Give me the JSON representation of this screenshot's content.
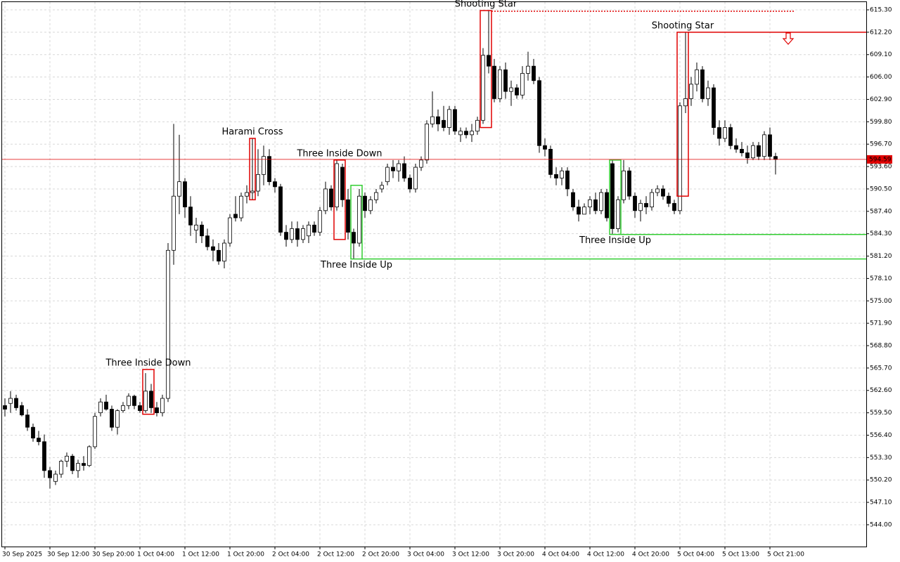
{
  "chart_data": {
    "type": "candlestick",
    "categories": [
      "30 Sep 2025",
      null,
      null,
      null,
      null,
      null,
      null,
      null,
      "30 Sep 12:00",
      null,
      null,
      null,
      null,
      null,
      null,
      null,
      "30 Sep 20:00",
      null,
      null,
      null,
      null,
      null,
      null,
      null,
      "1 Oct 04:00",
      null,
      null,
      null,
      null,
      null,
      null,
      null,
      "1 Oct 12:00",
      null,
      null,
      null,
      null,
      null,
      null,
      null,
      "1 Oct 20:00",
      null,
      null,
      null,
      null,
      null,
      null,
      null,
      "2 Oct 04:00",
      null,
      null,
      null,
      null,
      null,
      null,
      null,
      "2 Oct 12:00",
      null,
      null,
      null,
      null,
      null,
      null,
      null,
      "2 Oct 20:00",
      null,
      null,
      null,
      null,
      null,
      null,
      null,
      "3 Oct 04:00",
      null,
      null,
      null,
      null,
      null,
      null,
      null,
      "3 Oct 12:00",
      null,
      null,
      null,
      null,
      null,
      null,
      null,
      "3 Oct 20:00",
      null,
      null,
      null,
      null,
      null,
      null,
      null,
      "4 Oct 04:00",
      null,
      null,
      null,
      null,
      null,
      null,
      null,
      "4 Oct 12:00",
      null,
      null,
      null,
      null,
      null,
      null,
      null,
      "4 Oct 20:00",
      null,
      null,
      null,
      null,
      null,
      null,
      null,
      "5 Oct 04:00",
      null,
      null,
      null,
      null,
      null,
      null,
      null,
      "5 Oct 13:00",
      null,
      null,
      null,
      null,
      null,
      null,
      null,
      "5 Oct 21:00",
      null
    ],
    "open": [
      560.5,
      560.8,
      561.5,
      560.5,
      559.2,
      557.5,
      556,
      555.5,
      551.5,
      550,
      551,
      552.8,
      553.5,
      551.5,
      552.5,
      552.2,
      554.8,
      559.5,
      561,
      560,
      557.5,
      559.8,
      560.5,
      561.8,
      560.5,
      559.8,
      562.5,
      560.2,
      559.5,
      561.5,
      582,
      589.5,
      591.5,
      588,
      584.8,
      585.5,
      584,
      582.5,
      582,
      580.5,
      583,
      587,
      586.5,
      589.5,
      590,
      590.2,
      592.5,
      595,
      591.5,
      590.8,
      584.5,
      583.5,
      585,
      583.5,
      584,
      585.5,
      584.5,
      587.5,
      590.5,
      588,
      593.5,
      589,
      584.5,
      583,
      589.5,
      587.5,
      589,
      590.5,
      591.5,
      593.5,
      593,
      594,
      592,
      590.5,
      593.5,
      594.5,
      599.5,
      600.5,
      600,
      599,
      601.5,
      598,
      598.5,
      598,
      598.5,
      600,
      609,
      607.5,
      603,
      607,
      604,
      604.5,
      603.5,
      606.5,
      607.5,
      605.5,
      596.5,
      596,
      592.5,
      592,
      593,
      590,
      588,
      587,
      588,
      589,
      587.5,
      590,
      594,
      585,
      589,
      593,
      589.5,
      587.5,
      588.5,
      588,
      590,
      590.5,
      589.5,
      588.5,
      587.5,
      602,
      603,
      605,
      607,
      603,
      604.5,
      599,
      597.5,
      599,
      596.5,
      596,
      595.5,
      594.8,
      596.5,
      595,
      598,
      595
    ],
    "high": [
      561.5,
      562.5,
      562,
      561,
      560,
      558,
      557,
      556.5,
      552,
      551.5,
      553,
      554,
      553.8,
      553,
      553.5,
      555,
      559.5,
      561.5,
      562,
      560.5,
      560,
      561,
      562.2,
      562,
      561,
      565,
      563.5,
      561,
      562,
      583,
      599.5,
      598,
      592,
      589.5,
      586.5,
      586,
      585,
      583.5,
      583,
      583.5,
      587,
      589.5,
      590,
      591,
      597.5,
      596,
      596.5,
      596,
      592,
      591.2,
      585.5,
      586,
      586,
      585.5,
      586,
      586,
      588,
      591.5,
      591,
      594.5,
      594,
      590.5,
      585,
      590.5,
      590,
      589.5,
      590.5,
      591.5,
      594,
      594.5,
      594.5,
      595,
      592.5,
      594,
      595,
      600,
      604,
      601.5,
      602,
      602,
      602,
      599,
      599,
      599.5,
      600.5,
      610,
      615.2,
      608.5,
      607.5,
      608,
      605.5,
      605,
      607.5,
      609.5,
      608.5,
      606,
      597.5,
      596.5,
      593.5,
      593.5,
      593.5,
      590.5,
      589,
      588.5,
      589.5,
      590,
      590.5,
      590.5,
      594.5,
      589.5,
      594.5,
      593.5,
      590,
      589,
      589.5,
      590.5,
      591,
      591,
      590,
      589,
      602.5,
      612.2,
      606,
      608,
      607.5,
      605.5,
      605,
      600,
      600,
      599.5,
      597.5,
      597,
      596.5,
      597,
      597,
      598.5,
      599,
      595.5
    ],
    "low": [
      559,
      559.5,
      559.8,
      559,
      557,
      555.5,
      555,
      550.5,
      549,
      549.5,
      550.5,
      552,
      551,
      550.5,
      551.5,
      552,
      554.5,
      559,
      559.8,
      557,
      556.5,
      559.5,
      560,
      560,
      559.5,
      559.5,
      559.5,
      559,
      559,
      561,
      580,
      587,
      586.5,
      584,
      583,
      583,
      582,
      580.5,
      580,
      579.5,
      582.5,
      586,
      586,
      588.5,
      589,
      589.5,
      591,
      591,
      590,
      584,
      582.5,
      583,
      582.5,
      583,
      583,
      584,
      584,
      587,
      587.5,
      587.5,
      588,
      583.5,
      580.8,
      582.5,
      586.5,
      587,
      588.5,
      590,
      591,
      592,
      591.5,
      591.5,
      590,
      590,
      593,
      594,
      599,
      598.5,
      598.5,
      598,
      598,
      597,
      597.5,
      597,
      598,
      599.5,
      606.5,
      602.5,
      602.5,
      603,
      602,
      603,
      603,
      605.5,
      605,
      595.5,
      595,
      592,
      591,
      591,
      589.5,
      587.5,
      586,
      587,
      587,
      587,
      587,
      586,
      584.2,
      584.5,
      588.5,
      589,
      586.5,
      586,
      587,
      587.5,
      589.5,
      589,
      588,
      587,
      587,
      601,
      602,
      604,
      602.5,
      602,
      598,
      596.5,
      597,
      596,
      595.5,
      595,
      594,
      594.5,
      594.5,
      594.5,
      594.5,
      592.5
    ],
    "close": [
      560,
      561.5,
      560.2,
      559.2,
      557.5,
      556,
      555.5,
      551.5,
      550.5,
      551,
      552.8,
      553.5,
      551.5,
      552.5,
      552.2,
      554.8,
      559,
      561,
      560,
      557.5,
      559.8,
      560.5,
      561.8,
      560.5,
      559.8,
      562.5,
      560.2,
      559.5,
      561.5,
      582,
      589.5,
      591.5,
      588,
      585.5,
      585.5,
      584,
      582.5,
      582,
      580.5,
      583,
      586.5,
      586.5,
      589.5,
      590,
      590.2,
      592.5,
      595,
      591.5,
      590.8,
      584.5,
      583.5,
      585,
      583.5,
      585,
      585.5,
      584.5,
      587.5,
      590.5,
      588,
      594,
      589,
      584.5,
      583,
      589.5,
      587.5,
      589,
      590,
      591,
      593.5,
      593,
      594,
      592,
      590.5,
      593.5,
      594.5,
      599.5,
      600.5,
      599.5,
      599,
      601.5,
      598.5,
      598.5,
      598,
      598.5,
      600,
      609,
      607.5,
      603,
      607,
      604,
      604.5,
      603.5,
      606.5,
      607.5,
      605.5,
      596.5,
      596,
      592.5,
      592,
      593,
      590.5,
      588,
      587,
      588,
      589,
      587.5,
      590,
      586.5,
      585,
      589,
      593,
      589.5,
      587.5,
      588.5,
      588,
      590,
      590.5,
      589.5,
      588.5,
      587.5,
      602,
      603,
      605,
      607,
      603,
      604.5,
      599,
      597.5,
      599,
      596.5,
      596,
      595.5,
      594.8,
      596.5,
      595,
      598,
      595,
      594.59
    ],
    "bull_color": "#ffffff",
    "bear_color": "#000000",
    "outline_color": "#000000",
    "current_price": 594.59,
    "current_price_color": "#e00000",
    "ylim": [
      540.98,
      616.37
    ],
    "yticks": [
      {
        "value": 615.3,
        "label": "615.30"
      },
      {
        "value": 612.2,
        "label": "612.20"
      },
      {
        "value": 609.1,
        "label": "609.10"
      },
      {
        "value": 606,
        "label": "606.00"
      },
      {
        "value": 602.9,
        "label": "602.90"
      },
      {
        "value": 599.8,
        "label": "599.80"
      },
      {
        "value": 596.7,
        "label": "596.70"
      },
      {
        "value": 593.6,
        "label": "593.60"
      },
      {
        "value": 590.5,
        "label": "590.50"
      },
      {
        "value": 587.4,
        "label": "587.40"
      },
      {
        "value": 584.3,
        "label": "584.30"
      },
      {
        "value": 581.2,
        "label": "581.20"
      },
      {
        "value": 578.1,
        "label": "578.10"
      },
      {
        "value": 575,
        "label": "575.00"
      },
      {
        "value": 571.9,
        "label": "571.90"
      },
      {
        "value": 568.8,
        "label": "568.80"
      },
      {
        "value": 565.7,
        "label": "565.70"
      },
      {
        "value": 562.6,
        "label": "562.60"
      },
      {
        "value": 559.5,
        "label": "559.50"
      },
      {
        "value": 556.4,
        "label": "556.40"
      },
      {
        "value": 553.3,
        "label": "553.30"
      },
      {
        "value": 550.2,
        "label": "550.20"
      },
      {
        "value": 547.1,
        "label": "547.10"
      },
      {
        "value": 544,
        "label": "544.00"
      }
    ],
    "grid": true,
    "patterns": [
      {
        "label": "Three Inside Down",
        "color": "#e00000",
        "candles": [
          25,
          26
        ],
        "high": 565.5,
        "low": 559.3
      },
      {
        "label": "Harami Cross",
        "color": "#e00000",
        "candles": [
          44,
          44
        ],
        "high": 597.5,
        "low": 589
      },
      {
        "label": "Three Inside Down",
        "color": "#e00000",
        "candles": [
          59,
          60
        ],
        "high": 594.5,
        "low": 583.5
      },
      {
        "label": "Three Inside Up",
        "color": "#32cd32",
        "candles": [
          62,
          63
        ],
        "high": 591,
        "low": 580.8,
        "level": 580.8,
        "level_style": "solid"
      },
      {
        "label": "Shooting Star",
        "color": "#e00000",
        "candles": [
          85,
          86
        ],
        "high": 615.2,
        "low": 599,
        "level": 615.1,
        "level_style": "dotted"
      },
      {
        "label": "Three Inside Up",
        "color": "#32cd32",
        "candles": [
          108,
          109
        ],
        "high": 594.5,
        "low": 584.2,
        "level": 584.2,
        "level_style": "solid"
      },
      {
        "label": "Shooting Star",
        "color": "#e00000",
        "candles": [
          120,
          121
        ],
        "high": 612.2,
        "low": 589.5,
        "level": 612.2,
        "level_style": "solid"
      }
    ]
  }
}
